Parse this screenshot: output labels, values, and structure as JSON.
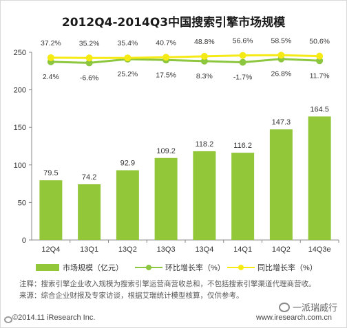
{
  "chart_data": {
    "type": "bar",
    "title": "2012Q4-2014Q3中国搜索引擎市场规模",
    "categories": [
      "12Q4",
      "13Q1",
      "13Q2",
      "13Q3",
      "13Q4",
      "14Q1",
      "14Q2",
      "14Q3e"
    ],
    "series": [
      {
        "name": "市场规模（亿元）",
        "type": "bar",
        "values": [
          79.5,
          74.2,
          92.9,
          109.2,
          118.2,
          116.2,
          147.3,
          164.5
        ],
        "labels": [
          "79.5",
          "74.2",
          "92.9",
          "109.2",
          "118.2",
          "116.2",
          "147.3",
          "164.5"
        ],
        "color": "#92c73a"
      },
      {
        "name": "环比增长率（%）",
        "type": "line",
        "values": [
          2.4,
          -6.6,
          25.2,
          17.5,
          8.3,
          -1.7,
          26.8,
          11.7
        ],
        "labels": [
          "2.4%",
          "-6.6%",
          "25.2%",
          "17.5%",
          "8.3%",
          "-1.7%",
          "26.8%",
          "11.7%"
        ],
        "color": "#8dc63f"
      },
      {
        "name": "同比增长率（%）",
        "type": "line",
        "values": [
          37.2,
          35.2,
          35.4,
          40.7,
          48.8,
          56.6,
          58.5,
          50.6
        ],
        "labels": [
          "37.2%",
          "35.2%",
          "35.4%",
          "40.7%",
          "48.8%",
          "56.6%",
          "58.5%",
          "50.6%"
        ],
        "color": "#f5ea14"
      }
    ],
    "yticks": [
      "0",
      "50",
      "100",
      "150",
      "200",
      "250"
    ],
    "ylim": [
      0,
      250
    ],
    "grid": false,
    "legend": "bottom"
  },
  "notes": {
    "note": "注释：搜索引擎企业收入规模为搜索引擎运营商营收总和，不包括搜索引擎渠道代理商营收。",
    "source": "来源：综合企业财报及专家访谈，根据艾瑞统计模型核算，仅供参考。"
  },
  "footer": {
    "copyright": "©2014.11 iResearch Inc.",
    "website": "www.iresearch.com.cn"
  },
  "watermark": {
    "text": "一派瑞威行"
  }
}
